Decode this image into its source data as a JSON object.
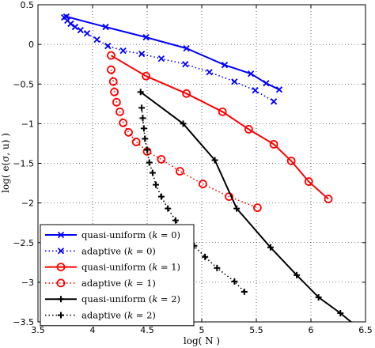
{
  "chart_data": {
    "type": "line",
    "title": "",
    "xlabel": "log( N )",
    "ylabel": "log( e(σ, u) )",
    "xlim": [
      3.5,
      6.5
    ],
    "ylim": [
      -3.5,
      0.5
    ],
    "xticks": [
      3.5,
      4,
      4.5,
      5,
      5.5,
      6,
      6.5
    ],
    "yticks": [
      -3.5,
      -3,
      -2.5,
      -2,
      -1.5,
      -1,
      -0.5,
      0,
      0.5
    ],
    "xtick_labels": [
      "3.5",
      "4",
      "4.5",
      "5",
      "5.5",
      "6",
      "6.5"
    ],
    "ytick_labels": [
      "−3.5",
      "−3",
      "−2.5",
      "−2",
      "−1.5",
      "−1",
      "−0.5",
      "0",
      "0.5"
    ],
    "grid": true,
    "grid_style": "dotted",
    "legend_position": "lower-left",
    "series": [
      {
        "name": "quasi-uniform (k = 0)",
        "legend_main": "quasi-uniform",
        "legend_k": "0",
        "color": "#0000ff",
        "line": "solid",
        "marker": "x",
        "x": [
          3.76,
          4.12,
          4.49,
          4.86,
          5.21,
          5.45,
          5.59,
          5.71
        ],
        "y": [
          0.35,
          0.22,
          0.09,
          -0.05,
          -0.26,
          -0.37,
          -0.49,
          -0.57
        ]
      },
      {
        "name": "adaptive (k = 0)",
        "legend_main": "adaptive",
        "legend_k": "0",
        "color": "#0000ff",
        "line": "dotted",
        "marker": "x",
        "x": [
          3.74,
          3.77,
          3.8,
          3.84,
          3.89,
          3.95,
          4.04,
          4.14,
          4.28,
          4.45,
          4.63,
          4.85,
          5.07,
          5.3,
          5.49,
          5.66
        ],
        "y": [
          0.34,
          0.3,
          0.26,
          0.22,
          0.18,
          0.14,
          0.06,
          -0.02,
          -0.08,
          -0.12,
          -0.18,
          -0.25,
          -0.35,
          -0.47,
          -0.58,
          -0.72
        ]
      },
      {
        "name": "quasi-uniform (k = 1)",
        "legend_main": "quasi-uniform",
        "legend_k": "1",
        "color": "#ff0000",
        "line": "solid",
        "marker": "o",
        "x": [
          4.17,
          4.49,
          4.86,
          5.19,
          5.43,
          5.66,
          5.82,
          5.98,
          6.16
        ],
        "y": [
          -0.14,
          -0.4,
          -0.62,
          -0.85,
          -1.07,
          -1.26,
          -1.47,
          -1.73,
          -1.95
        ]
      },
      {
        "name": "adaptive (k = 1)",
        "legend_main": "adaptive",
        "legend_k": "1",
        "color": "#ff0000",
        "line": "dotted",
        "marker": "o",
        "x": [
          4.17,
          4.19,
          4.2,
          4.22,
          4.25,
          4.28,
          4.33,
          4.4,
          4.5,
          4.63,
          4.8,
          5.01,
          5.25,
          5.51
        ],
        "y": [
          -0.32,
          -0.47,
          -0.6,
          -0.73,
          -0.85,
          -0.99,
          -1.11,
          -1.23,
          -1.35,
          -1.45,
          -1.6,
          -1.76,
          -1.92,
          -2.06
        ]
      },
      {
        "name": "quasi-uniform (k = 2)",
        "legend_main": "quasi-uniform",
        "legend_k": "2",
        "color": "#000000",
        "line": "solid",
        "marker": "+",
        "x": [
          4.44,
          4.83,
          5.12,
          5.32,
          5.63,
          5.87,
          6.07,
          6.27,
          6.42
        ],
        "y": [
          -0.6,
          -1.0,
          -1.46,
          -2.07,
          -2.56,
          -2.91,
          -3.19,
          -3.39,
          -3.56
        ]
      },
      {
        "name": "adaptive (k = 2)",
        "legend_main": "adaptive",
        "legend_k": "2",
        "color": "#000000",
        "line": "dotted",
        "marker": "+",
        "x": [
          4.45,
          4.46,
          4.47,
          4.48,
          4.5,
          4.52,
          4.55,
          4.58,
          4.63,
          4.69,
          4.76,
          4.84,
          4.93,
          5.03,
          5.14,
          5.3,
          5.39
        ],
        "y": [
          -0.8,
          -0.93,
          -1.06,
          -1.19,
          -1.33,
          -1.49,
          -1.62,
          -1.77,
          -1.92,
          -2.07,
          -2.22,
          -2.38,
          -2.54,
          -2.68,
          -2.82,
          -2.99,
          -3.12
        ]
      }
    ]
  }
}
